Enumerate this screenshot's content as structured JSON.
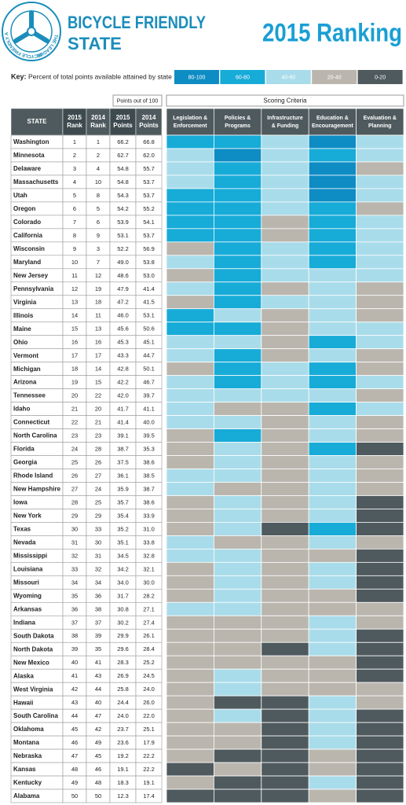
{
  "header": {
    "logo_top": "THE LEAGUE",
    "logo_ring": "BICYCLE FRIENDLY AMERICA",
    "title_line1": "BICYCLE FRIENDLY",
    "title_line2": "STATE",
    "ranking": "2015 Ranking"
  },
  "key": {
    "label": "Key:",
    "description": "Percent of total points available attained by state",
    "levels": [
      {
        "label": "80-100",
        "color": "#0e8cc4"
      },
      {
        "label": "60-80",
        "color": "#17abd8"
      },
      {
        "label": "40-60",
        "color": "#a9dcea"
      },
      {
        "label": "20-40",
        "color": "#bab6ae"
      },
      {
        "label": "0-20",
        "color": "#4f5a5e"
      }
    ]
  },
  "table": {
    "points_caption": "Points out of 100",
    "criteria_caption": "Scoring Criteria",
    "columns": [
      [
        "STATE"
      ],
      [
        "2015",
        "Rank"
      ],
      [
        "2014",
        "Rank"
      ],
      [
        "2015",
        "Points"
      ],
      [
        "2014",
        "Points"
      ]
    ],
    "criteria": [
      [
        "Legislation &",
        "Enforcement"
      ],
      [
        "Policies &",
        "Programs"
      ],
      [
        "Infrastructure",
        "& Funding"
      ],
      [
        "Education &",
        "Encouragement"
      ],
      [
        "Evaluation &",
        "Planning"
      ]
    ],
    "rows": [
      [
        "Washington",
        1,
        1,
        "66.2",
        "66.8",
        [
          "60-80",
          "60-80",
          "40-60",
          "80-100",
          "40-60"
        ]
      ],
      [
        "Minnesota",
        2,
        2,
        "62.7",
        "62.0",
        [
          "40-60",
          "80-100",
          "40-60",
          "60-80",
          "40-60"
        ]
      ],
      [
        "Delaware",
        3,
        4,
        "54.8",
        "55.7",
        [
          "40-60",
          "60-80",
          "40-60",
          "80-100",
          "20-40"
        ]
      ],
      [
        "Massachusetts",
        4,
        10,
        "54.8",
        "53.7",
        [
          "40-60",
          "60-80",
          "40-60",
          "80-100",
          "40-60"
        ]
      ],
      [
        "Utah",
        5,
        8,
        "54.3",
        "53.7",
        [
          "60-80",
          "60-80",
          "40-60",
          "80-100",
          "40-60"
        ]
      ],
      [
        "Oregon",
        6,
        5,
        "54.2",
        "55.2",
        [
          "60-80",
          "60-80",
          "40-60",
          "60-80",
          "20-40"
        ]
      ],
      [
        "Colorado",
        7,
        6,
        "53.9",
        "54.1",
        [
          "60-80",
          "60-80",
          "20-40",
          "60-80",
          "40-60"
        ]
      ],
      [
        "California",
        8,
        9,
        "53.1",
        "53.7",
        [
          "60-80",
          "60-80",
          "20-40",
          "60-80",
          "40-60"
        ]
      ],
      [
        "Wisconsin",
        9,
        3,
        "52.2",
        "56.9",
        [
          "20-40",
          "60-80",
          "40-60",
          "60-80",
          "40-60"
        ]
      ],
      [
        "Maryland",
        10,
        7,
        "49.0",
        "53.8",
        [
          "40-60",
          "60-80",
          "40-60",
          "60-80",
          "40-60"
        ]
      ],
      [
        "New Jersey",
        11,
        12,
        "48.6",
        "53.0",
        [
          "20-40",
          "60-80",
          "40-60",
          "40-60",
          "40-60"
        ]
      ],
      [
        "Pennsylvania",
        12,
        19,
        "47.9",
        "41.4",
        [
          "40-60",
          "60-80",
          "20-40",
          "40-60",
          "20-40"
        ]
      ],
      [
        "Virginia",
        13,
        18,
        "47.2",
        "41.5",
        [
          "20-40",
          "60-80",
          "40-60",
          "40-60",
          "20-40"
        ]
      ],
      [
        "Illinois",
        14,
        11,
        "46.0",
        "53.1",
        [
          "60-80",
          "40-60",
          "20-40",
          "40-60",
          "20-40"
        ]
      ],
      [
        "Maine",
        15,
        13,
        "45.6",
        "50.6",
        [
          "60-80",
          "60-80",
          "20-40",
          "40-60",
          "40-60"
        ]
      ],
      [
        "Ohio",
        16,
        16,
        "45.3",
        "45.1",
        [
          "40-60",
          "40-60",
          "20-40",
          "60-80",
          "40-60"
        ]
      ],
      [
        "Vermont",
        17,
        17,
        "43.3",
        "44.7",
        [
          "40-60",
          "60-80",
          "20-40",
          "40-60",
          "20-40"
        ]
      ],
      [
        "Michigan",
        18,
        14,
        "42.8",
        "50.1",
        [
          "20-40",
          "60-80",
          "40-60",
          "60-80",
          "20-40"
        ]
      ],
      [
        "Arizona",
        19,
        15,
        "42.2",
        "46.7",
        [
          "40-60",
          "60-80",
          "40-60",
          "60-80",
          "40-60"
        ]
      ],
      [
        "Tennessee",
        20,
        22,
        "42.0",
        "39.7",
        [
          "40-60",
          "40-60",
          "40-60",
          "40-60",
          "20-40"
        ]
      ],
      [
        "Idaho",
        21,
        20,
        "41.7",
        "41.1",
        [
          "40-60",
          "20-40",
          "20-40",
          "60-80",
          "40-60"
        ]
      ],
      [
        "Connecticut",
        22,
        21,
        "41.4",
        "40.0",
        [
          "40-60",
          "40-60",
          "20-40",
          "40-60",
          "20-40"
        ]
      ],
      [
        "North Carolina",
        23,
        23,
        "39.1",
        "39.5",
        [
          "20-40",
          "60-80",
          "20-40",
          "40-60",
          "20-40"
        ]
      ],
      [
        "Florida",
        24,
        28,
        "38.7",
        "35.3",
        [
          "20-40",
          "40-60",
          "20-40",
          "60-80",
          "0-20"
        ]
      ],
      [
        "Georgia",
        25,
        26,
        "37.5",
        "38.6",
        [
          "20-40",
          "40-60",
          "20-40",
          "40-60",
          "20-40"
        ]
      ],
      [
        "Rhode Island",
        26,
        27,
        "36.1",
        "38.5",
        [
          "40-60",
          "40-60",
          "20-40",
          "40-60",
          "20-40"
        ]
      ],
      [
        "New Hampshire",
        27,
        24,
        "35.9",
        "38.7",
        [
          "40-60",
          "20-40",
          "20-40",
          "40-60",
          "20-40"
        ]
      ],
      [
        "Iowa",
        28,
        25,
        "35.7",
        "38.6",
        [
          "20-40",
          "40-60",
          "20-40",
          "40-60",
          "0-20"
        ]
      ],
      [
        "New York",
        29,
        29,
        "35.4",
        "33.9",
        [
          "20-40",
          "40-60",
          "20-40",
          "40-60",
          "0-20"
        ]
      ],
      [
        "Texas",
        30,
        33,
        "35.2",
        "31.0",
        [
          "20-40",
          "40-60",
          "0-20",
          "60-80",
          "0-20"
        ]
      ],
      [
        "Nevada",
        31,
        30,
        "35.1",
        "33.8",
        [
          "40-60",
          "20-40",
          "20-40",
          "40-60",
          "20-40"
        ]
      ],
      [
        "Mississippi",
        32,
        31,
        "34.5",
        "32.8",
        [
          "40-60",
          "40-60",
          "20-40",
          "20-40",
          "0-20"
        ]
      ],
      [
        "Louisiana",
        33,
        32,
        "34.2",
        "32.1",
        [
          "20-40",
          "40-60",
          "20-40",
          "40-60",
          "0-20"
        ]
      ],
      [
        "Missouri",
        34,
        34,
        "34.0",
        "30.0",
        [
          "20-40",
          "40-60",
          "20-40",
          "40-60",
          "0-20"
        ]
      ],
      [
        "Wyoming",
        35,
        36,
        "31.7",
        "28.2",
        [
          "20-40",
          "40-60",
          "20-40",
          "20-40",
          "0-20"
        ]
      ],
      [
        "Arkansas",
        36,
        38,
        "30.8",
        "27.1",
        [
          "40-60",
          "40-60",
          "20-40",
          "20-40",
          "20-40"
        ]
      ],
      [
        "Indiana",
        37,
        37,
        "30.2",
        "27.4",
        [
          "20-40",
          "20-40",
          "20-40",
          "40-60",
          "20-40"
        ]
      ],
      [
        "South Dakota",
        38,
        39,
        "29.9",
        "26.1",
        [
          "20-40",
          "20-40",
          "20-40",
          "40-60",
          "0-20"
        ]
      ],
      [
        "North Dakota",
        39,
        35,
        "29.6",
        "28.4",
        [
          "20-40",
          "20-40",
          "0-20",
          "40-60",
          "0-20"
        ]
      ],
      [
        "New Mexico",
        40,
        41,
        "28.3",
        "25.2",
        [
          "20-40",
          "20-40",
          "20-40",
          "20-40",
          "0-20"
        ]
      ],
      [
        "Alaska",
        41,
        43,
        "26.9",
        "24.5",
        [
          "20-40",
          "40-60",
          "20-40",
          "20-40",
          "0-20"
        ]
      ],
      [
        "West Virginia",
        42,
        44,
        "25.8",
        "24.0",
        [
          "20-40",
          "40-60",
          "20-40",
          "20-40",
          "20-40"
        ]
      ],
      [
        "Hawaii",
        43,
        40,
        "24.4",
        "26.0",
        [
          "20-40",
          "0-20",
          "0-20",
          "40-60",
          "20-40"
        ]
      ],
      [
        "South Carolina",
        44,
        47,
        "24.0",
        "22.0",
        [
          "20-40",
          "40-60",
          "0-20",
          "40-60",
          "0-20"
        ]
      ],
      [
        "Oklahoma",
        45,
        42,
        "23.7",
        "25.1",
        [
          "20-40",
          "20-40",
          "0-20",
          "40-60",
          "0-20"
        ]
      ],
      [
        "Montana",
        46,
        49,
        "23.6",
        "17.9",
        [
          "20-40",
          "20-40",
          "0-20",
          "40-60",
          "0-20"
        ]
      ],
      [
        "Nebraska",
        47,
        45,
        "19.2",
        "22.2",
        [
          "20-40",
          "0-20",
          "0-20",
          "20-40",
          "0-20"
        ]
      ],
      [
        "Kansas",
        48,
        46,
        "19.1",
        "22.2",
        [
          "0-20",
          "20-40",
          "0-20",
          "20-40",
          "0-20"
        ]
      ],
      [
        "Kentucky",
        49,
        48,
        "18.3",
        "19.1",
        [
          "20-40",
          "0-20",
          "0-20",
          "40-60",
          "0-20"
        ]
      ],
      [
        "Alabama",
        50,
        50,
        "12.3",
        "17.4",
        [
          "0-20",
          "0-20",
          "0-20",
          "20-40",
          "0-20"
        ]
      ]
    ]
  }
}
